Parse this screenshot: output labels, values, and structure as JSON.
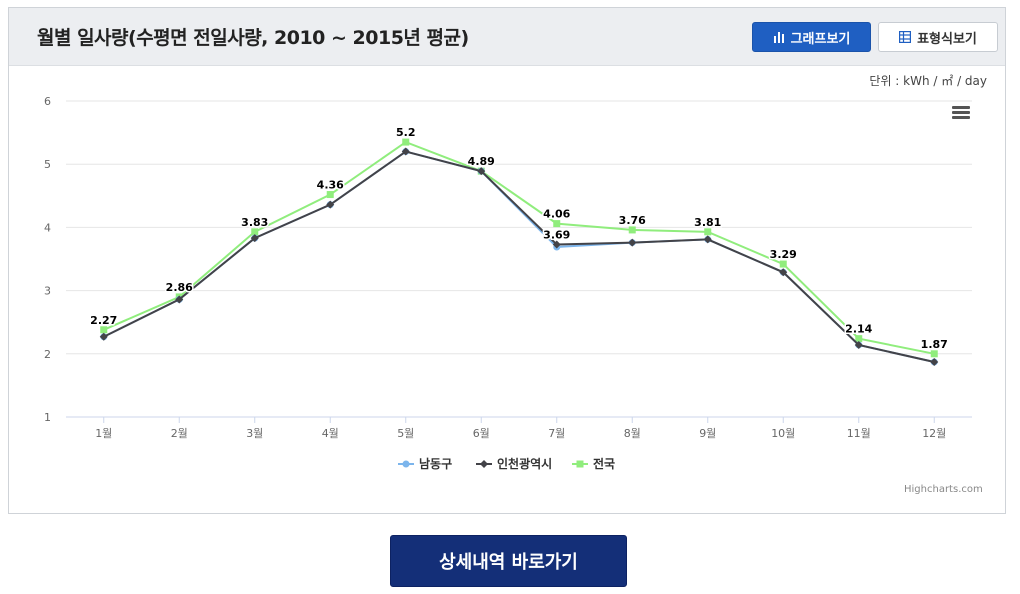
{
  "header": {
    "title": "월별 일사량(수평면 전일사량, 2010 ~ 2015년 평균)",
    "graph_button": "그래프보기",
    "table_button": "표형식보기"
  },
  "unit_label": "단위 : kWh / ㎡ / day",
  "credits": "Highcharts.com",
  "detail_button": "상세내역 바로가기",
  "chart_data": {
    "type": "line",
    "title": "월별 일사량(수평면 전일사량, 2010 ~ 2015년 평균)",
    "xlabel": "",
    "ylabel": "",
    "ylim": [
      1,
      6
    ],
    "yticks": [
      1,
      2,
      3,
      4,
      5,
      6
    ],
    "categories": [
      "1월",
      "2월",
      "3월",
      "4월",
      "5월",
      "6월",
      "7월",
      "8월",
      "9월",
      "10월",
      "11월",
      "12월"
    ],
    "series": [
      {
        "name": "남동구",
        "color": "#7cb5ec",
        "marker": "circle",
        "values": [
          2.27,
          2.86,
          3.83,
          4.36,
          5.2,
          4.89,
          3.69,
          3.76,
          3.81,
          3.29,
          2.14,
          1.87
        ]
      },
      {
        "name": "인천광역시",
        "color": "#434348",
        "marker": "diamond",
        "values": [
          2.27,
          2.86,
          3.83,
          4.36,
          5.2,
          4.89,
          3.73,
          3.76,
          3.81,
          3.29,
          2.14,
          1.87
        ]
      },
      {
        "name": "전국",
        "color": "#90ed7d",
        "marker": "square",
        "values": [
          2.38,
          2.9,
          3.93,
          4.52,
          5.35,
          4.89,
          4.06,
          3.96,
          3.93,
          3.42,
          2.24,
          2.0
        ]
      }
    ],
    "data_labels": [
      "2.27",
      "2.86",
      "3.83",
      "4.36",
      "5.2",
      "4.89",
      "4.06",
      "3.76",
      "3.81",
      "3.29",
      "2.14",
      "1.87"
    ],
    "extra_label": "3.69",
    "legend": "bottom-center",
    "grid": true
  }
}
